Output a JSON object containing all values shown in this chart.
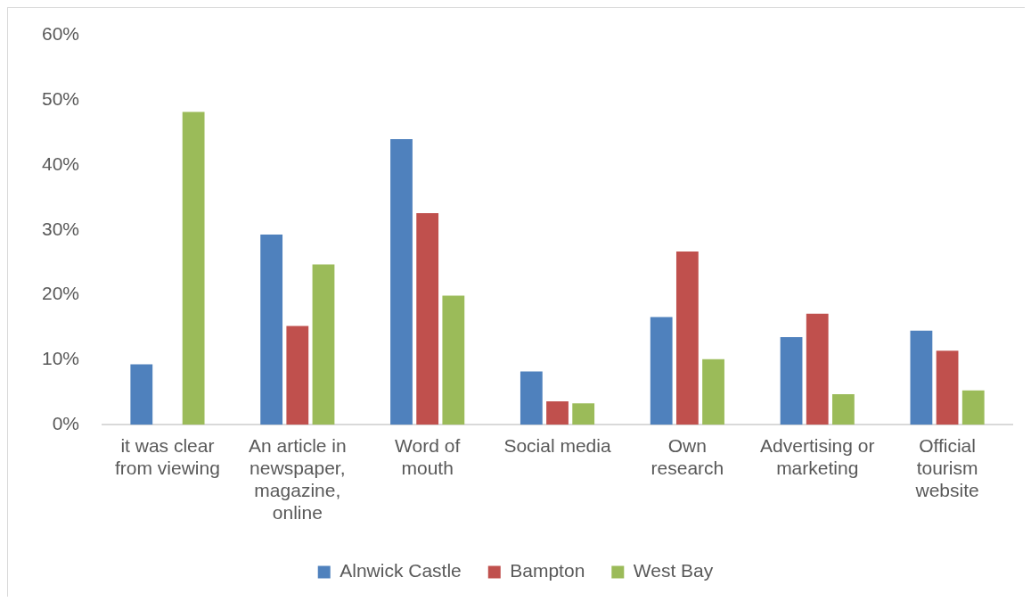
{
  "chart_data": {
    "type": "bar",
    "categories": [
      "it was clear from viewing",
      "An article in newspaper, magazine, online",
      "Word of mouth",
      "Social media",
      "Own research",
      "Advertising or marketing",
      "Official tourism website"
    ],
    "series": [
      {
        "name": "Alnwick Castle",
        "color": "#4f81bd",
        "values": [
          9.3,
          29.3,
          44.0,
          8.2,
          16.6,
          13.5,
          14.5
        ]
      },
      {
        "name": "Bampton",
        "color": "#c0504d",
        "values": [
          0,
          15.2,
          32.6,
          3.6,
          26.7,
          17.1,
          11.4
        ]
      },
      {
        "name": "West Bay",
        "color": "#9bbb59",
        "values": [
          48.2,
          24.7,
          19.9,
          3.3,
          10.1,
          4.7,
          5.3
        ]
      }
    ],
    "ylim": [
      0,
      60
    ],
    "yticks": [
      {
        "value": 0,
        "label": "0%"
      },
      {
        "value": 10,
        "label": "10%"
      },
      {
        "value": 20,
        "label": "20%"
      },
      {
        "value": 30,
        "label": "30%"
      },
      {
        "value": 40,
        "label": "40%"
      },
      {
        "value": 50,
        "label": "50%"
      },
      {
        "value": 60,
        "label": "60%"
      }
    ],
    "grid": false,
    "legend": "bottom"
  }
}
